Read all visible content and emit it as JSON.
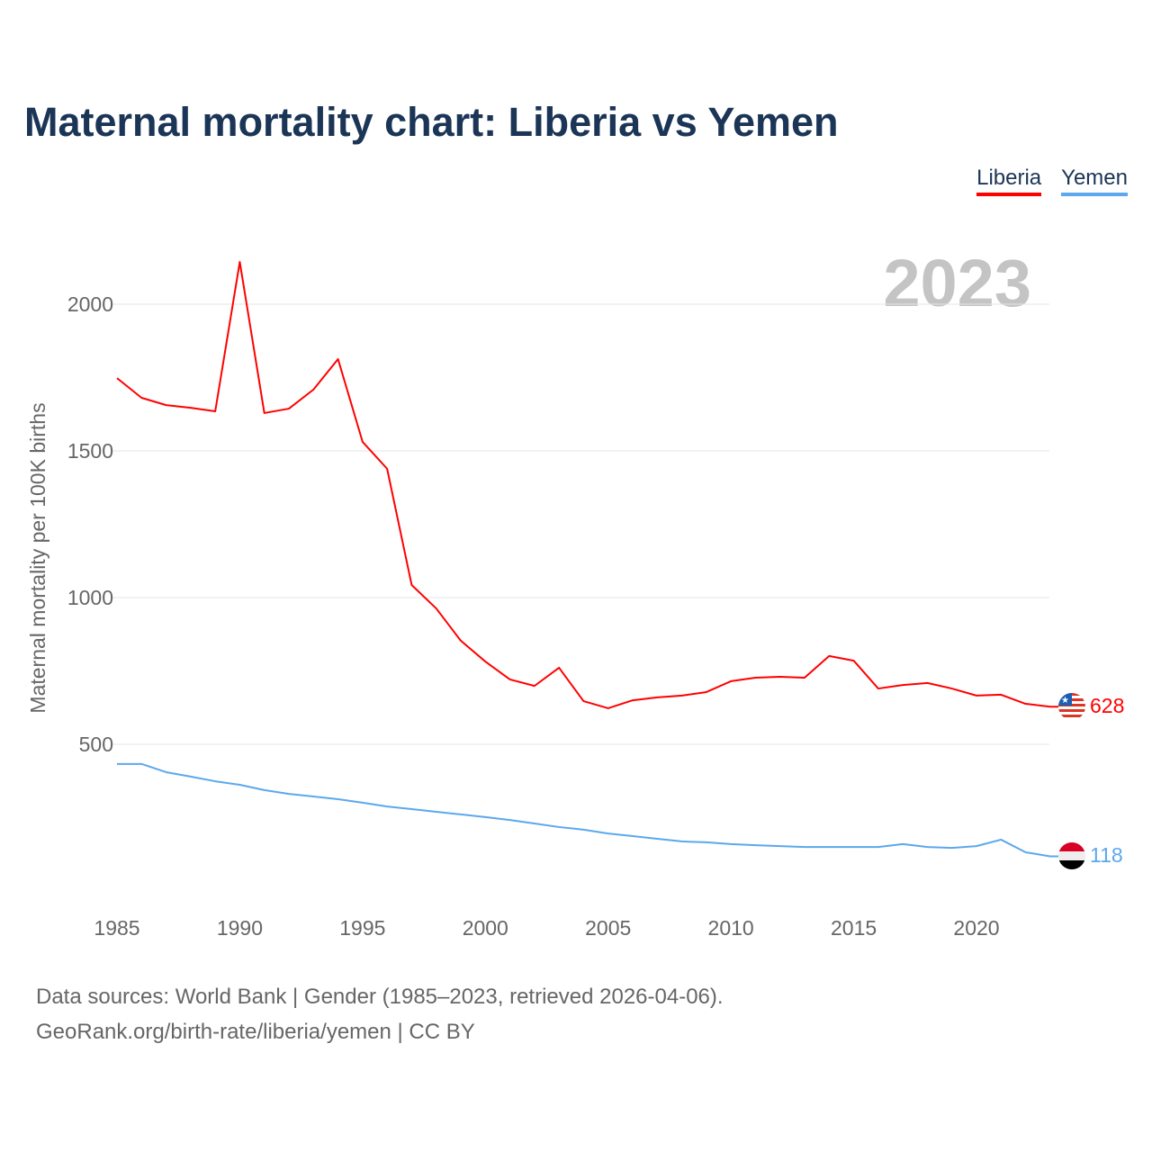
{
  "title": "Maternal mortality chart: Liberia vs Yemen",
  "legend": [
    {
      "label": "Liberia",
      "color": "#ff0000"
    },
    {
      "label": "Yemen",
      "color": "#5ba8ec"
    }
  ],
  "year_badge": "2023",
  "footer": {
    "line1": "Data sources: World Bank | Gender (1985–2023, retrieved 2026-04-06).",
    "line2": "GeoRank.org/birth-rate/liberia/yemen | CC BY"
  },
  "chart_data": {
    "type": "line",
    "title": "Maternal mortality chart: Liberia vs Yemen",
    "xlabel": "",
    "ylabel": "Maternal mortality per 100K births",
    "x": [
      1985,
      1986,
      1987,
      1988,
      1989,
      1990,
      1991,
      1992,
      1993,
      1994,
      1995,
      1996,
      1997,
      1998,
      1999,
      2000,
      2001,
      2002,
      2003,
      2004,
      2005,
      2006,
      2007,
      2008,
      2009,
      2010,
      2011,
      2012,
      2013,
      2014,
      2015,
      2016,
      2017,
      2018,
      2019,
      2020,
      2021,
      2022,
      2023
    ],
    "xlim": [
      1985,
      2023
    ],
    "ylim": [
      0,
      2200
    ],
    "xticks": [
      "1985",
      "1990",
      "1995",
      "2000",
      "2005",
      "2010",
      "2015",
      "2020"
    ],
    "yticks": [
      "500",
      "1000",
      "1500",
      "2000"
    ],
    "grid": true,
    "legend_position": "top-right",
    "series": [
      {
        "name": "Liberia",
        "color": "#ff0000",
        "end_label": "628",
        "flag": "liberia-flag",
        "values": [
          1748,
          1681,
          1656,
          1647,
          1635,
          2144,
          1629,
          1644,
          1709,
          1813,
          1531,
          1439,
          1043,
          963,
          853,
          782,
          721,
          699,
          761,
          647,
          623,
          650,
          660,
          666,
          678,
          715,
          727,
          730,
          727,
          801,
          785,
          690,
          702,
          709,
          690,
          666,
          669,
          638,
          628
        ]
      },
      {
        "name": "Yemen",
        "color": "#5ba8ec",
        "end_label": "118",
        "flag": "yemen-flag",
        "values": [
          433,
          433,
          405,
          390,
          374,
          362,
          344,
          331,
          322,
          313,
          301,
          288,
          279,
          270,
          261,
          252,
          242,
          230,
          218,
          209,
          196,
          187,
          178,
          169,
          166,
          160,
          156,
          153,
          150,
          150,
          150,
          150,
          160,
          150,
          147,
          153,
          175,
          132,
          118
        ]
      }
    ]
  }
}
